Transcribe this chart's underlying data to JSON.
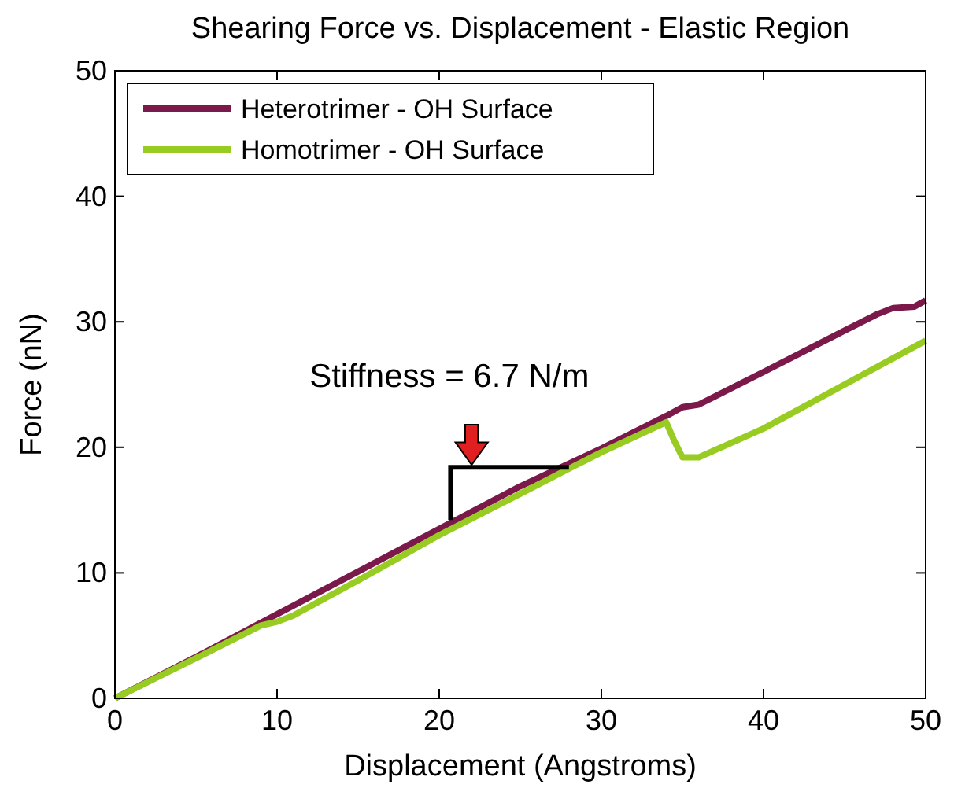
{
  "chart_data": {
    "type": "line",
    "title": "Shearing Force vs. Displacement - Elastic Region",
    "xlabel": "Displacement (Angstroms)",
    "ylabel": "Force (nN)",
    "xlim": [
      0,
      50
    ],
    "ylim": [
      0,
      50
    ],
    "xticks": [
      0,
      10,
      20,
      30,
      40,
      50
    ],
    "yticks": [
      0,
      10,
      20,
      30,
      40,
      50
    ],
    "legend": "top left",
    "grid": false,
    "annotations": [
      "Stiffness = 6.7 N/m"
    ],
    "series": [
      {
        "name": "Heterotrimer - OH Surface",
        "color": "#7b1a4a",
        "x": [
          0,
          5,
          10,
          15,
          20,
          25,
          30,
          34,
          35,
          36,
          40,
          45,
          47,
          48,
          49.3,
          50
        ],
        "values": [
          0,
          3.3,
          6.7,
          10.1,
          13.5,
          16.9,
          19.9,
          22.5,
          23.2,
          23.4,
          26,
          29.3,
          30.6,
          31.1,
          31.2,
          31.7
        ]
      },
      {
        "name": "Homotrimer - OH Surface",
        "color": "#99cc22",
        "x": [
          0,
          5,
          9,
          10,
          11,
          15,
          20,
          25,
          28,
          30,
          34,
          34.5,
          35,
          36,
          40,
          45,
          50
        ],
        "values": [
          0,
          3.2,
          5.8,
          6.1,
          6.6,
          9.4,
          13,
          16.3,
          18.3,
          19.6,
          22,
          20.5,
          19.2,
          19.2,
          21.5,
          25,
          28.5
        ]
      }
    ]
  }
}
